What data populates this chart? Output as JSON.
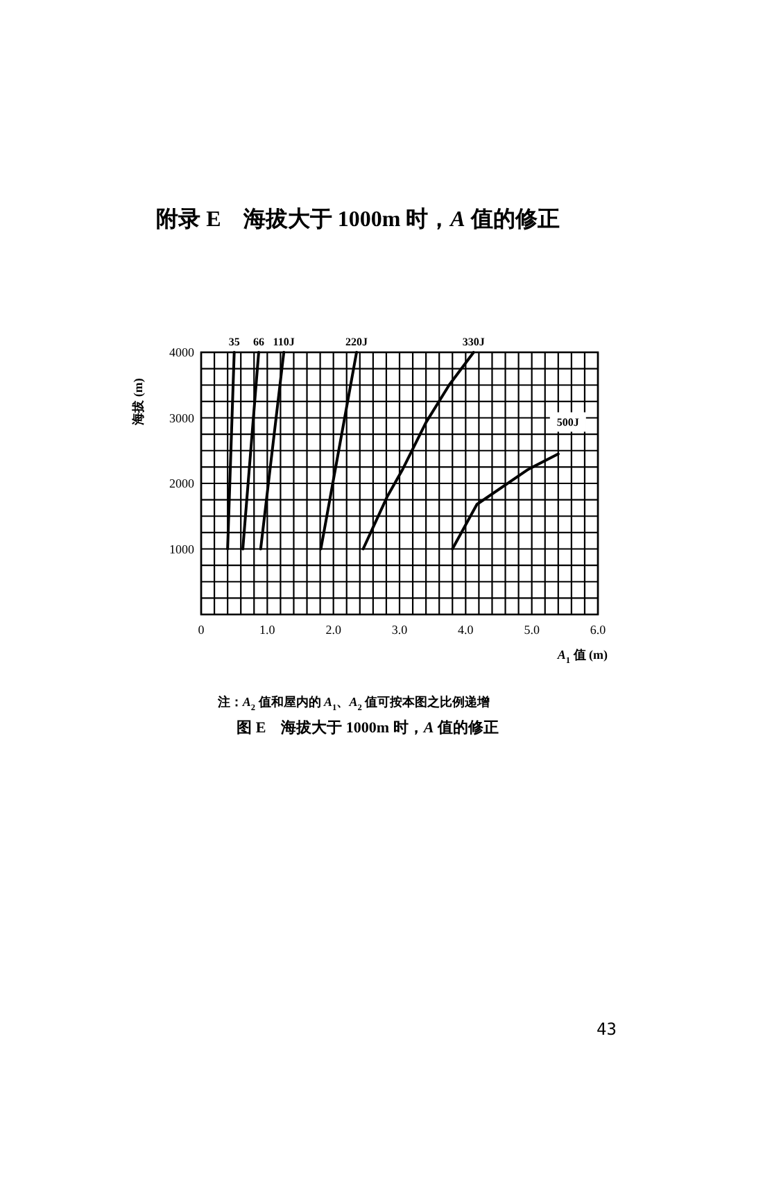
{
  "chart_data": {
    "type": "line",
    "title": "附录 E　海拔大于 1000m 时，*A* 值的修正",
    "xlabel": "*A*$_{1}$ 值 (m)",
    "ylabel": "海拔 (m)",
    "annotations": [
      "注：*A*$_{2}$ 值和屋内的 *A*$_{1}$、*A*$_{2}$ 值可按本图之比例递增",
      "图 E　海拔大于 1000m 时，*A* 值的修正",
      "43"
    ],
    "xlim": [
      0,
      6
    ],
    "ylim": [
      0,
      4000
    ],
    "xticks": [
      0,
      {
        "value": 0.2,
        "label": null
      },
      {
        "value": 0.4,
        "label": null
      },
      {
        "value": 0.6,
        "label": null
      },
      {
        "value": 0.8,
        "label": null
      },
      {
        "value": 1,
        "label": "1.0"
      },
      {
        "value": 1.2,
        "label": null
      },
      {
        "value": 1.4,
        "label": null
      },
      {
        "value": 1.6,
        "label": null
      },
      {
        "value": 1.8,
        "label": null
      },
      {
        "value": 2,
        "label": "2.0"
      },
      {
        "value": 2.2,
        "label": null
      },
      {
        "value": 2.4,
        "label": null
      },
      {
        "value": 2.6,
        "label": null
      },
      {
        "value": 2.8,
        "label": null
      },
      {
        "value": 3,
        "label": "3.0"
      },
      {
        "value": 3.2,
        "label": null
      },
      {
        "value": 3.4,
        "label": null
      },
      {
        "value": 3.6,
        "label": null
      },
      {
        "value": 3.8,
        "label": null
      },
      {
        "value": 4,
        "label": "4.0"
      },
      {
        "value": 4.2,
        "label": null
      },
      {
        "value": 4.4,
        "label": null
      },
      {
        "value": 4.6,
        "label": null
      },
      {
        "value": 4.8,
        "label": null
      },
      {
        "value": 5,
        "label": "5.0"
      },
      {
        "value": 5.2,
        "label": null
      },
      {
        "value": 5.4,
        "label": null
      },
      {
        "value": 5.6,
        "label": null
      },
      {
        "value": 5.8,
        "label": null
      },
      {
        "value": 6,
        "label": "6.0"
      }
    ],
    "yticks": [
      {
        "value": 0,
        "label": null
      },
      {
        "value": 250,
        "label": null
      },
      {
        "value": 500,
        "label": null
      },
      {
        "value": 750,
        "label": null
      },
      1000,
      {
        "value": 1250,
        "label": null
      },
      {
        "value": 1500,
        "label": null
      },
      {
        "value": 1750,
        "label": null
      },
      2000,
      {
        "value": 2250,
        "label": null
      },
      {
        "value": 2500,
        "label": null
      },
      {
        "value": 2750,
        "label": null
      },
      3000,
      {
        "value": 3250,
        "label": null
      },
      {
        "value": 3500,
        "label": null
      },
      {
        "value": 3750,
        "label": null
      },
      4000
    ],
    "grid": true,
    "series": [
      {
        "name": "35",
        "color": "#000000",
        "x": [
          0.4,
          0.5
        ],
        "values": [
          1000,
          4000
        ]
      },
      {
        "name": "66",
        "color": "#000000",
        "x": [
          0.63,
          0.87
        ],
        "values": [
          1000,
          4000
        ]
      },
      {
        "name": "110J",
        "color": "#000000",
        "x": [
          0.9,
          1.25
        ],
        "values": [
          1000,
          4000
        ]
      },
      {
        "name": "220J",
        "color": "#000000",
        "x": [
          1.81,
          2.35
        ],
        "values": [
          1000,
          4000
        ]
      },
      {
        "name": "330J",
        "color": "#000000",
        "x": [
          2.45,
          2.81,
          3.05,
          3.4,
          3.75,
          4.12
        ],
        "values": [
          1000,
          1790,
          2220,
          2930,
          3500,
          4000
        ]
      },
      {
        "name": "500J",
        "color": "#000000",
        "x": [
          3.8,
          4.17,
          4.94,
          5.4
        ],
        "values": [
          1000,
          1680,
          2210,
          2450
        ]
      }
    ]
  }
}
